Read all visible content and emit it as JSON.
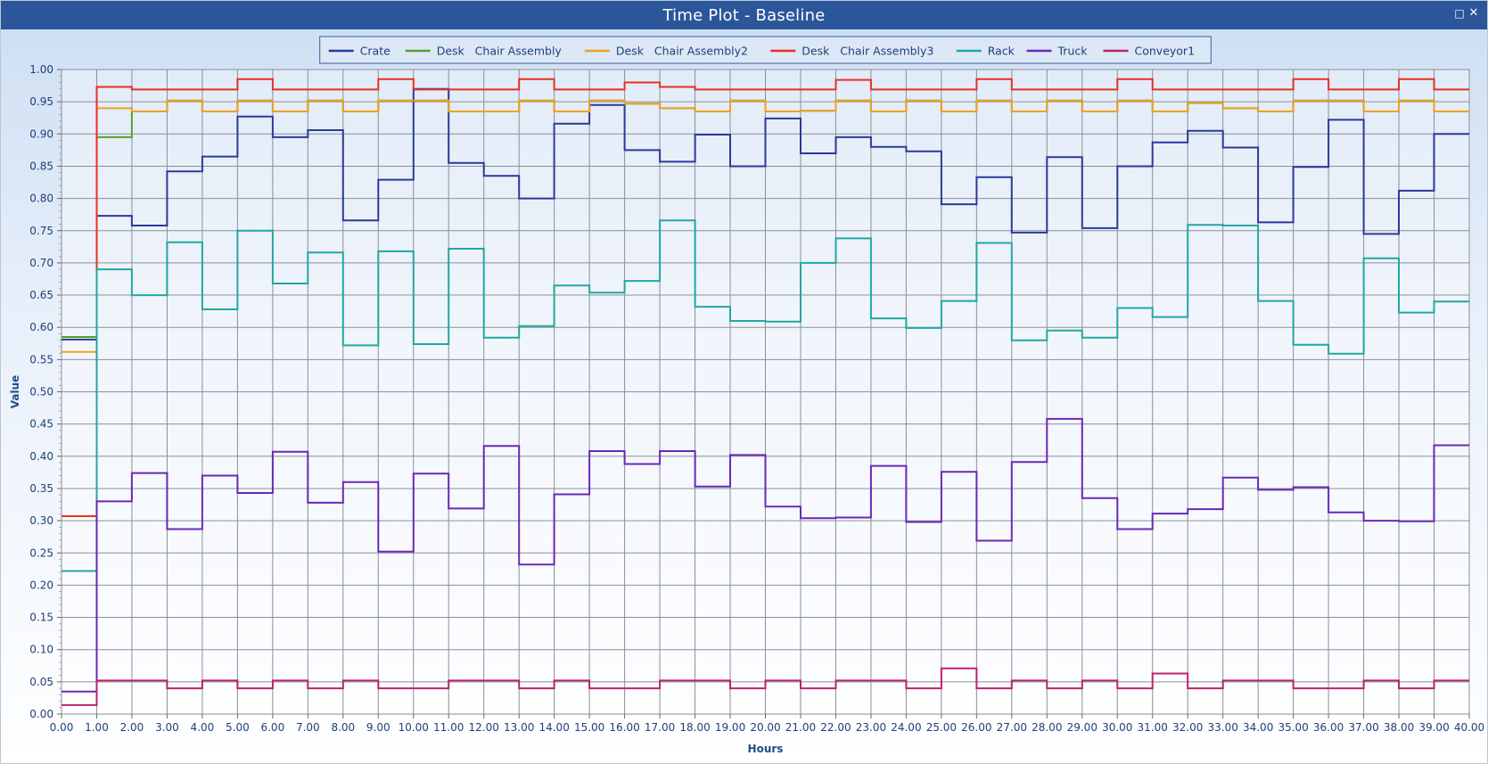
{
  "window": {
    "title": "Time Plot - Baseline",
    "restore_icon": "restore-icon",
    "close_icon": "close-icon"
  },
  "chart_data": {
    "type": "line",
    "step": true,
    "xlabel": "Hours",
    "ylabel": "Value",
    "xlim": [
      0,
      40
    ],
    "ylim": [
      0,
      1
    ],
    "x_ticks": [
      "0.00",
      "1.00",
      "2.00",
      "3.00",
      "4.00",
      "5.00",
      "6.00",
      "7.00",
      "8.00",
      "9.00",
      "10.00",
      "11.00",
      "12.00",
      "13.00",
      "14.00",
      "15.00",
      "16.00",
      "17.00",
      "18.00",
      "19.00",
      "20.00",
      "21.00",
      "22.00",
      "23.00",
      "24.00",
      "25.00",
      "26.00",
      "27.00",
      "28.00",
      "29.00",
      "30.00",
      "31.00",
      "32.00",
      "33.00",
      "34.00",
      "35.00",
      "36.00",
      "37.00",
      "38.00",
      "39.00",
      "40.00"
    ],
    "y_ticks": [
      "0.00",
      "0.05",
      "0.10",
      "0.15",
      "0.20",
      "0.25",
      "0.30",
      "0.35",
      "0.40",
      "0.45",
      "0.50",
      "0.55",
      "0.60",
      "0.65",
      "0.70",
      "0.75",
      "0.80",
      "0.85",
      "0.90",
      "0.95",
      "1.00"
    ],
    "grid": true,
    "legend_position": "top-center",
    "series": [
      {
        "name": "Crate",
        "color": "#2a3a9a",
        "values": [
          0.581,
          0.773,
          0.758,
          0.842,
          0.865,
          0.927,
          0.895,
          0.906,
          0.766,
          0.829,
          0.97,
          0.855,
          0.835,
          0.8,
          0.916,
          0.945,
          0.875,
          0.857,
          0.899,
          0.85,
          0.924,
          0.87,
          0.895,
          0.88,
          0.873,
          0.791,
          0.833,
          0.747,
          0.864,
          0.754,
          0.85,
          0.887,
          0.905,
          0.879,
          0.763,
          0.849,
          0.922,
          0.745,
          0.812,
          0.9
        ]
      },
      {
        "name": "Desk   Chair Assembly",
        "color": "#5a9e2a",
        "values": [
          0.585,
          0.895,
          0.935,
          0.952,
          0.935,
          0.952,
          0.935,
          0.952,
          0.935,
          0.952,
          0.952,
          0.935,
          0.935,
          0.952,
          0.935,
          0.952,
          0.947,
          0.94,
          0.935,
          0.952,
          0.935,
          0.936,
          0.952,
          0.935,
          0.952,
          0.935,
          0.952,
          0.935,
          0.952,
          0.935,
          0.952,
          0.935,
          0.948,
          0.94,
          0.935,
          0.952,
          0.952,
          0.935,
          0.952,
          0.935
        ]
      },
      {
        "name": "Desk   Chair Assembly2",
        "color": "#f0a020",
        "values": [
          0.562,
          0.94,
          0.935,
          0.952,
          0.935,
          0.952,
          0.935,
          0.952,
          0.935,
          0.952,
          0.952,
          0.935,
          0.935,
          0.952,
          0.935,
          0.952,
          0.947,
          0.94,
          0.935,
          0.952,
          0.935,
          0.936,
          0.952,
          0.935,
          0.952,
          0.935,
          0.952,
          0.935,
          0.952,
          0.935,
          0.952,
          0.935,
          0.948,
          0.94,
          0.935,
          0.952,
          0.952,
          0.935,
          0.952,
          0.935
        ]
      },
      {
        "name": "Desk   Chair Assembly3",
        "color": "#e83020",
        "values": [
          0.307,
          0.973,
          0.969,
          0.969,
          0.969,
          0.985,
          0.969,
          0.969,
          0.969,
          0.985,
          0.969,
          0.969,
          0.969,
          0.985,
          0.969,
          0.969,
          0.98,
          0.973,
          0.969,
          0.969,
          0.969,
          0.969,
          0.984,
          0.969,
          0.969,
          0.969,
          0.985,
          0.969,
          0.969,
          0.969,
          0.985,
          0.969,
          0.969,
          0.969,
          0.969,
          0.985,
          0.969,
          0.969,
          0.985,
          0.969
        ]
      },
      {
        "name": "Rack",
        "color": "#20a8a0",
        "values": [
          0.222,
          0.69,
          0.65,
          0.732,
          0.628,
          0.75,
          0.668,
          0.716,
          0.572,
          0.718,
          0.574,
          0.722,
          0.584,
          0.602,
          0.665,
          0.654,
          0.672,
          0.766,
          0.632,
          0.61,
          0.609,
          0.7,
          0.738,
          0.614,
          0.599,
          0.641,
          0.731,
          0.58,
          0.595,
          0.584,
          0.63,
          0.616,
          0.759,
          0.758,
          0.641,
          0.573,
          0.559,
          0.707,
          0.623,
          0.64
        ]
      },
      {
        "name": "Truck",
        "color": "#6a28b8",
        "values": [
          0.035,
          0.33,
          0.374,
          0.287,
          0.37,
          0.343,
          0.407,
          0.328,
          0.36,
          0.252,
          0.373,
          0.319,
          0.416,
          0.232,
          0.341,
          0.408,
          0.388,
          0.408,
          0.353,
          0.402,
          0.322,
          0.304,
          0.305,
          0.385,
          0.298,
          0.376,
          0.269,
          0.391,
          0.458,
          0.335,
          0.287,
          0.311,
          0.318,
          0.367,
          0.348,
          0.352,
          0.313,
          0.3,
          0.299,
          0.417
        ]
      },
      {
        "name": "Conveyor1",
        "color": "#c02070",
        "values": [
          0.014,
          0.052,
          0.052,
          0.04,
          0.052,
          0.04,
          0.052,
          0.04,
          0.052,
          0.04,
          0.04,
          0.052,
          0.052,
          0.04,
          0.052,
          0.04,
          0.04,
          0.052,
          0.052,
          0.04,
          0.052,
          0.04,
          0.052,
          0.052,
          0.04,
          0.071,
          0.04,
          0.052,
          0.04,
          0.052,
          0.04,
          0.063,
          0.04,
          0.052,
          0.052,
          0.04,
          0.04,
          0.052,
          0.04,
          0.052
        ]
      }
    ]
  }
}
